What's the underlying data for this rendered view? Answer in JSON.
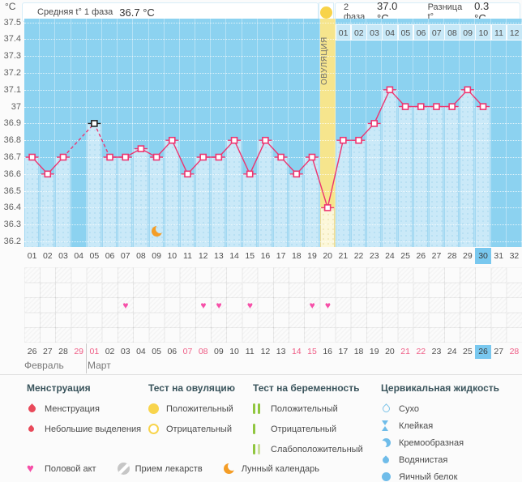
{
  "header": {
    "unit_label": "°C",
    "phase1_label": "Средняя t° 1 фаза",
    "phase1_value": "36.7 °C",
    "phase2_label": "2 фаза",
    "phase2_value": "37.0 °C",
    "diff_label": "Разница t°",
    "diff_value": "0.3 °C"
  },
  "chart_data": {
    "type": "line",
    "title": "Basal body temperature cycle chart",
    "ylabel": "°C",
    "ylim": [
      36.2,
      37.5
    ],
    "ytick_step": 0.1,
    "yticks": [
      "37.5",
      "37.4",
      "37.3",
      "37.2",
      "37.1",
      "37",
      "36.9",
      "36.8",
      "36.7",
      "36.6",
      "36.5",
      "36.4",
      "36.3",
      "36.2"
    ],
    "days": [
      "01",
      "02",
      "03",
      "04",
      "05",
      "06",
      "07",
      "08",
      "09",
      "10",
      "11",
      "12",
      "13",
      "14",
      "15",
      "16",
      "17",
      "18",
      "19",
      "20",
      "21",
      "22",
      "23",
      "24",
      "25",
      "26",
      "27",
      "28",
      "29",
      "30",
      "31",
      "32"
    ],
    "temperatures": [
      36.7,
      36.6,
      36.7,
      null,
      36.9,
      36.7,
      36.7,
      36.75,
      36.7,
      36.8,
      36.6,
      36.7,
      36.7,
      36.8,
      36.6,
      36.8,
      36.7,
      36.6,
      36.7,
      36.4,
      36.8,
      36.8,
      36.9,
      37.1,
      37.0,
      37.0,
      37.0,
      37.0,
      37.1,
      37.0,
      null,
      null
    ],
    "excluded_point_day": 5,
    "dashed_segments": [
      [
        3,
        5
      ],
      [
        5,
        6
      ]
    ],
    "ovulation_day": 20,
    "ovulation_label": "ОВУЛЯЦИЯ",
    "phase2_labels": [
      "01",
      "02",
      "03",
      "04",
      "05",
      "06",
      "07",
      "08",
      "09",
      "10",
      "11",
      "12"
    ],
    "current_cycle_day": 30,
    "moon_day": 9,
    "intercourse_days": [
      7,
      12,
      13,
      15,
      19,
      20
    ],
    "grid_rows": 5,
    "intercourse_row": 2,
    "calendar": {
      "dates": [
        "26",
        "27",
        "28",
        "29",
        "01",
        "02",
        "03",
        "04",
        "05",
        "06",
        "07",
        "08",
        "09",
        "10",
        "11",
        "12",
        "13",
        "14",
        "15",
        "16",
        "17",
        "18",
        "19",
        "20",
        "21",
        "22",
        "23",
        "24",
        "25",
        "26",
        "27",
        "28"
      ],
      "weekend_indices": [
        3,
        4,
        10,
        11,
        17,
        18,
        24,
        25,
        31
      ],
      "today_index": 29,
      "month_labels": [
        "Февраль",
        "Март"
      ],
      "month_divider_index": 4
    }
  },
  "legend": {
    "sections": [
      {
        "title": "Менструация",
        "items": [
          {
            "icon": "drop-red",
            "label": "Менструация"
          },
          {
            "icon": "drop-red-small",
            "label": "Небольшие выделения"
          }
        ]
      },
      {
        "title": "Тест на овуляцию",
        "items": [
          {
            "icon": "circle-yellow-filled",
            "label": "Положительный"
          },
          {
            "icon": "circle-yellow-outline",
            "label": "Отрицательный"
          }
        ]
      },
      {
        "title": "Тест на беременность",
        "items": [
          {
            "icon": "bars-green-2",
            "label": "Положительный"
          },
          {
            "icon": "bar-green-1",
            "label": "Отрицательный"
          },
          {
            "icon": "bars-green-weak",
            "label": "Слабоположительный"
          }
        ]
      },
      {
        "title": "Цервикальная жидкость",
        "items": [
          {
            "icon": "drop-blue-outline",
            "label": "Сухо"
          },
          {
            "icon": "hourglass-blue",
            "label": "Клейкая"
          },
          {
            "icon": "crescent-blue",
            "label": "Кремообразная"
          },
          {
            "icon": "drop-blue-filled",
            "label": "Водянистая"
          },
          {
            "icon": "circle-blue-filled",
            "label": "Яичный белок"
          }
        ]
      }
    ],
    "footer_items": [
      {
        "icon": "heart-pink",
        "label": "Половой акт"
      },
      {
        "icon": "pill-gray",
        "label": "Прием лекарств"
      },
      {
        "icon": "moon-orange",
        "label": "Лунный календарь"
      }
    ]
  },
  "colors": {
    "accent_pink": "#ED3570",
    "excluded_black": "#222222",
    "chart_background_blue": "#8CD2F0",
    "bar_blue": "#CAE9F8",
    "ovulation_yellow": "#F6E58D",
    "ovulation_bar_yellow": "#FCF7DA",
    "header_circle_yellow": "#F8D349",
    "highlight_blue": "#79C8EF",
    "weekend_red": "#EF5C85",
    "menstruation_red": "#E9495A",
    "test_green": "#90C63F",
    "test_green_pale": "#CCDF9E",
    "fluid_blue": "#6FBCE9",
    "heart_pink": "#F64FA8",
    "moon_orange": "#F49D26"
  }
}
